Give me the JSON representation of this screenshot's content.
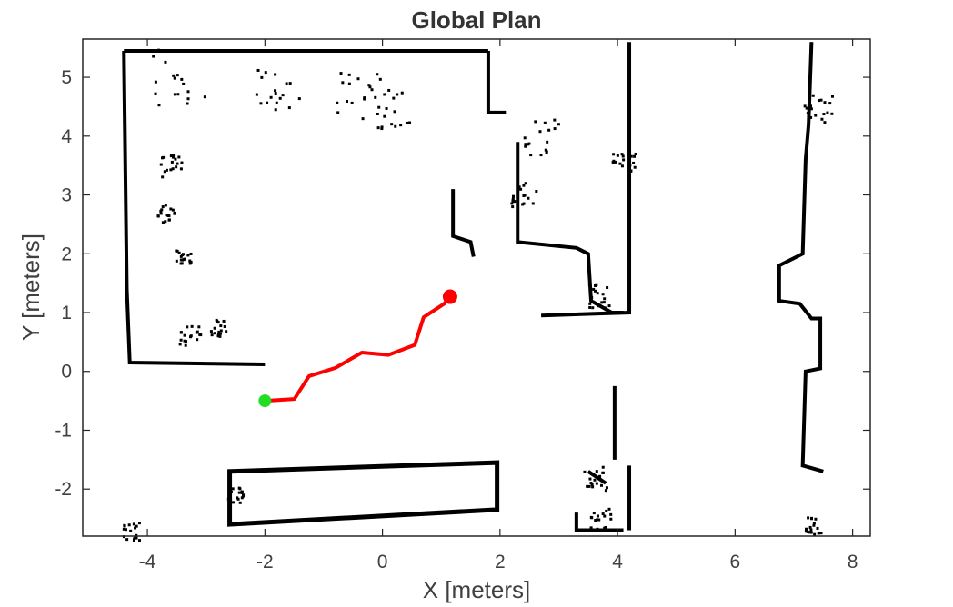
{
  "chart_data": {
    "type": "line",
    "title": "Global Plan",
    "xlabel": "X [meters]",
    "ylabel": "Y [meters]",
    "xlim": [
      -5.1,
      8.3
    ],
    "ylim": [
      -2.8,
      5.65
    ],
    "xticks": [
      -4,
      -2,
      0,
      2,
      4,
      6,
      8
    ],
    "yticks": [
      -2,
      -1,
      0,
      1,
      2,
      3,
      4,
      5
    ],
    "grid": false,
    "colors": {
      "path": "#ff0000",
      "start": "#22dd22",
      "goal": "#ff0000",
      "obstacles": "#000000"
    },
    "series": [
      {
        "x": [
          -2.0,
          -1.5,
          -1.25,
          -0.8,
          -0.35,
          0.1,
          0.55,
          0.7,
          1.05,
          1.15
        ],
        "y": [
          -0.5,
          -0.47,
          -0.08,
          0.06,
          0.32,
          0.28,
          0.45,
          0.92,
          1.15,
          1.27
        ]
      }
    ],
    "start_point": {
      "x": -2.0,
      "y": -0.5
    },
    "goal_point": {
      "x": 1.15,
      "y": 1.27
    }
  }
}
